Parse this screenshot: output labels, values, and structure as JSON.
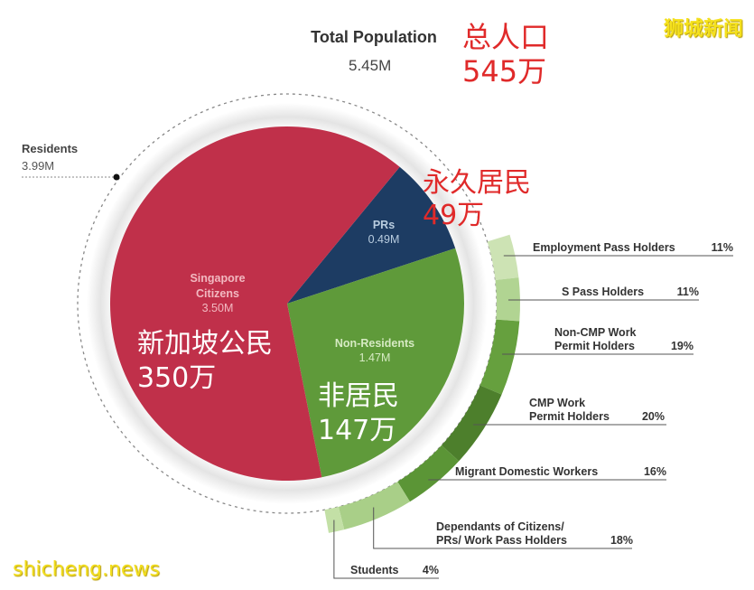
{
  "header": {
    "title": "Total Population",
    "value": "5.45M",
    "cn_title": "总人口",
    "cn_value": "545万"
  },
  "watermarks": {
    "top_right": "狮城新闻",
    "bottom_left": "shicheng.news"
  },
  "residents": {
    "label": "Residents",
    "value": "3.99M"
  },
  "slices": {
    "citizens": {
      "label_line1": "Singapore",
      "label_line2": "Citizens",
      "value": "3.50M",
      "cn_label": "新加坡公民",
      "cn_value": "350万",
      "color": "#c0304a"
    },
    "prs": {
      "label": "PRs",
      "value": "0.49M",
      "cn_label": "永久居民",
      "cn_value": "49万",
      "color": "#1d3c63"
    },
    "non_residents": {
      "label": "Non-Residents",
      "value": "1.47M",
      "cn_label": "非居民",
      "cn_value": "147万",
      "color": "#5f9a3a"
    }
  },
  "breakdown": [
    {
      "line1": "Employment Pass Holders",
      "line2": "",
      "pct": "11%"
    },
    {
      "line1": "S Pass Holders",
      "line2": "",
      "pct": "11%"
    },
    {
      "line1": "Non-CMP Work",
      "line2": "Permit Holders",
      "pct": "19%"
    },
    {
      "line1": "CMP Work",
      "line2": "Permit Holders",
      "pct": "20%"
    },
    {
      "line1": "Migrant Domestic Workers",
      "line2": "",
      "pct": "16%"
    },
    {
      "line1": "Dependants of Citizens/",
      "line2": "PRs/ Work Pass Holders",
      "pct": "18%"
    },
    {
      "line1": "Students",
      "line2": "",
      "pct": "4%"
    }
  ],
  "chart_data": {
    "type": "pie",
    "title": "Total Population 5.45M",
    "pie": {
      "categories": [
        "Singapore Citizens",
        "PRs",
        "Non-Residents"
      ],
      "values": [
        3.5,
        0.49,
        1.47
      ],
      "unit": "M",
      "colors": [
        "#c0304a",
        "#1d3c63",
        "#5f9a3a"
      ]
    },
    "group_annotation": {
      "label": "Residents",
      "value": 3.99,
      "unit": "M",
      "covers": [
        "Singapore Citizens",
        "PRs"
      ]
    },
    "non_resident_breakdown": {
      "type": "ring",
      "categories": [
        "Employment Pass Holders",
        "S Pass Holders",
        "Non-CMP Work Permit Holders",
        "CMP Work Permit Holders",
        "Migrant Domestic Workers",
        "Dependants of Citizens/PRs/Work Pass Holders",
        "Students"
      ],
      "values_pct": [
        11,
        11,
        19,
        20,
        16,
        18,
        4
      ],
      "colors": [
        "#cde3b4",
        "#b1d492",
        "#66a03e",
        "#4d7f2c",
        "#5b9536",
        "#a9cf88",
        "#c3e0a6"
      ]
    },
    "annotations_cn": [
      "总人口 545万",
      "永久居民 49万",
      "新加坡公民 350万",
      "非居民 147万"
    ]
  }
}
